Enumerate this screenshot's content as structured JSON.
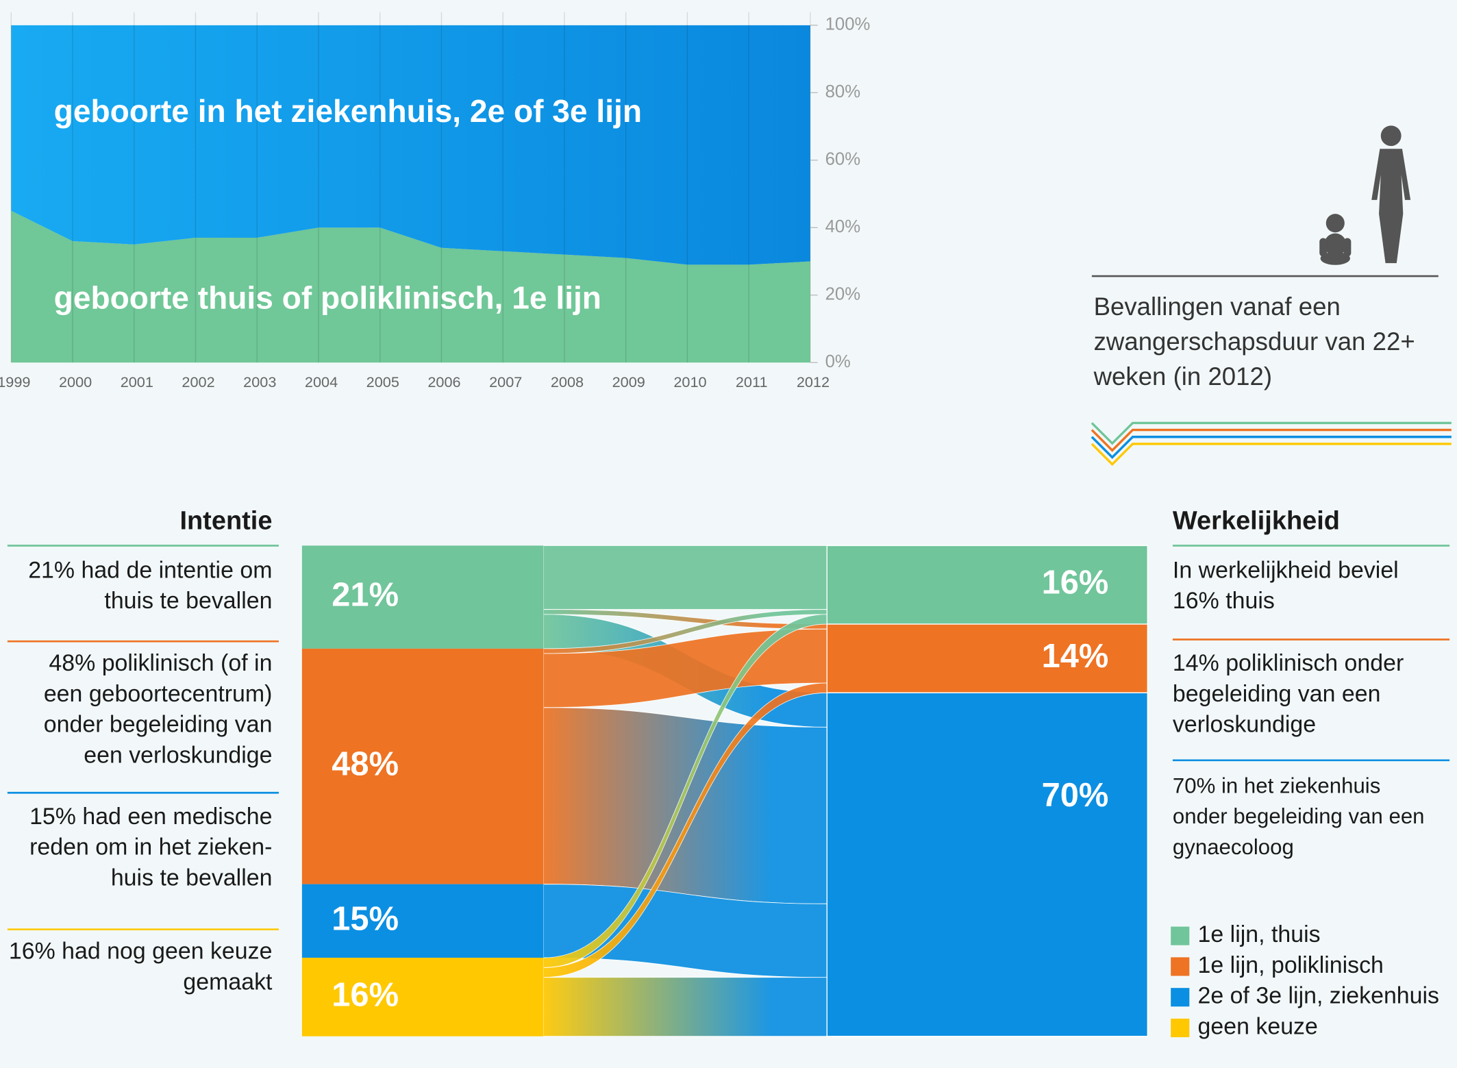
{
  "chart_data": [
    {
      "type": "area",
      "x": [
        1999,
        2000,
        2001,
        2002,
        2003,
        2004,
        2005,
        2006,
        2007,
        2008,
        2009,
        2010,
        2011,
        2012
      ],
      "xlim": [
        1999,
        2012
      ],
      "xticks": [
        1999,
        2000,
        2001,
        2002,
        2003,
        2004,
        2005,
        2006,
        2007,
        2008,
        2009,
        2010,
        2011,
        2012
      ],
      "series": [
        {
          "name": "geboorte thuis of poliklinisch, 1e lijn",
          "color": "#70c797",
          "values": [
            45,
            36,
            35,
            37,
            37,
            40,
            40,
            34,
            33,
            32,
            31,
            29,
            29,
            30
          ]
        },
        {
          "name": "geboorte in het ziekenhuis, 2e of 3e lijn",
          "color": "#149ce9",
          "values": [
            55,
            64,
            65,
            63,
            63,
            60,
            60,
            66,
            67,
            68,
            69,
            71,
            71,
            70
          ]
        }
      ],
      "ylim": [
        0,
        100
      ],
      "yticks": [
        {
          "value": 0,
          "label": "0%"
        },
        {
          "value": 20,
          "label": "20%"
        },
        {
          "value": 40,
          "label": "40%"
        },
        {
          "value": 60,
          "label": "60%"
        },
        {
          "value": 80,
          "label": "80%"
        },
        {
          "value": 100,
          "label": "100%"
        }
      ],
      "grid": true
    },
    {
      "type": "sankey",
      "left_title": "Intentie",
      "right_title": "Werkelijkheid",
      "series": [
        {
          "name": "1e lijn, thuis",
          "color": "#70c59a"
        },
        {
          "name": "1e lijn, poliklinisch",
          "color": "#ee7323"
        },
        {
          "name": "2e of 3e lijn, ziekenhuis",
          "color": "#0b8fe2"
        },
        {
          "name": "geen keuze",
          "color": "#ffc800"
        }
      ],
      "left_values": [
        21,
        48,
        15,
        16
      ],
      "left_value_labels": [
        "21%",
        "48%",
        "15%",
        "16%"
      ],
      "right_values": [
        16,
        14,
        70
      ],
      "right_value_labels": [
        "16%",
        "14%",
        "70%"
      ],
      "flows": [
        {
          "source": 0,
          "target": 0,
          "value": 13
        },
        {
          "source": 0,
          "target": 1,
          "value": 1
        },
        {
          "source": 0,
          "target": 2,
          "value": 7
        },
        {
          "source": 1,
          "target": 0,
          "value": 1
        },
        {
          "source": 1,
          "target": 1,
          "value": 11
        },
        {
          "source": 1,
          "target": 2,
          "value": 36
        },
        {
          "source": 2,
          "target": 2,
          "value": 15
        },
        {
          "source": 3,
          "target": 0,
          "value": 2
        },
        {
          "source": 3,
          "target": 1,
          "value": 2
        },
        {
          "source": 3,
          "target": 2,
          "value": 12
        }
      ],
      "left_notes": [
        [
          "21% had de intentie om",
          "thuis te bevallen"
        ],
        [
          "48% poliklinisch (of in",
          "een geboortecentrum)",
          "onder begeleiding van",
          "een verloskundige"
        ],
        [
          "15% had een medische",
          "reden om in het zieken-",
          "huis te bevallen"
        ],
        [
          "16% had nog geen keuze",
          "gemaakt"
        ]
      ],
      "right_notes": [
        [
          "In werkelijkheid beviel",
          "16% thuis"
        ],
        [
          "14% poliklinisch onder",
          "begeleiding van een",
          "verloskundige"
        ],
        [
          "70% in het ziekenhuis",
          "onder begeleiding van een",
          "gynaecoloog"
        ]
      ]
    }
  ],
  "note": [
    "Bevallingen vanaf een",
    "zwangerschapsduur van 22+",
    "weken (in 2012)"
  ]
}
